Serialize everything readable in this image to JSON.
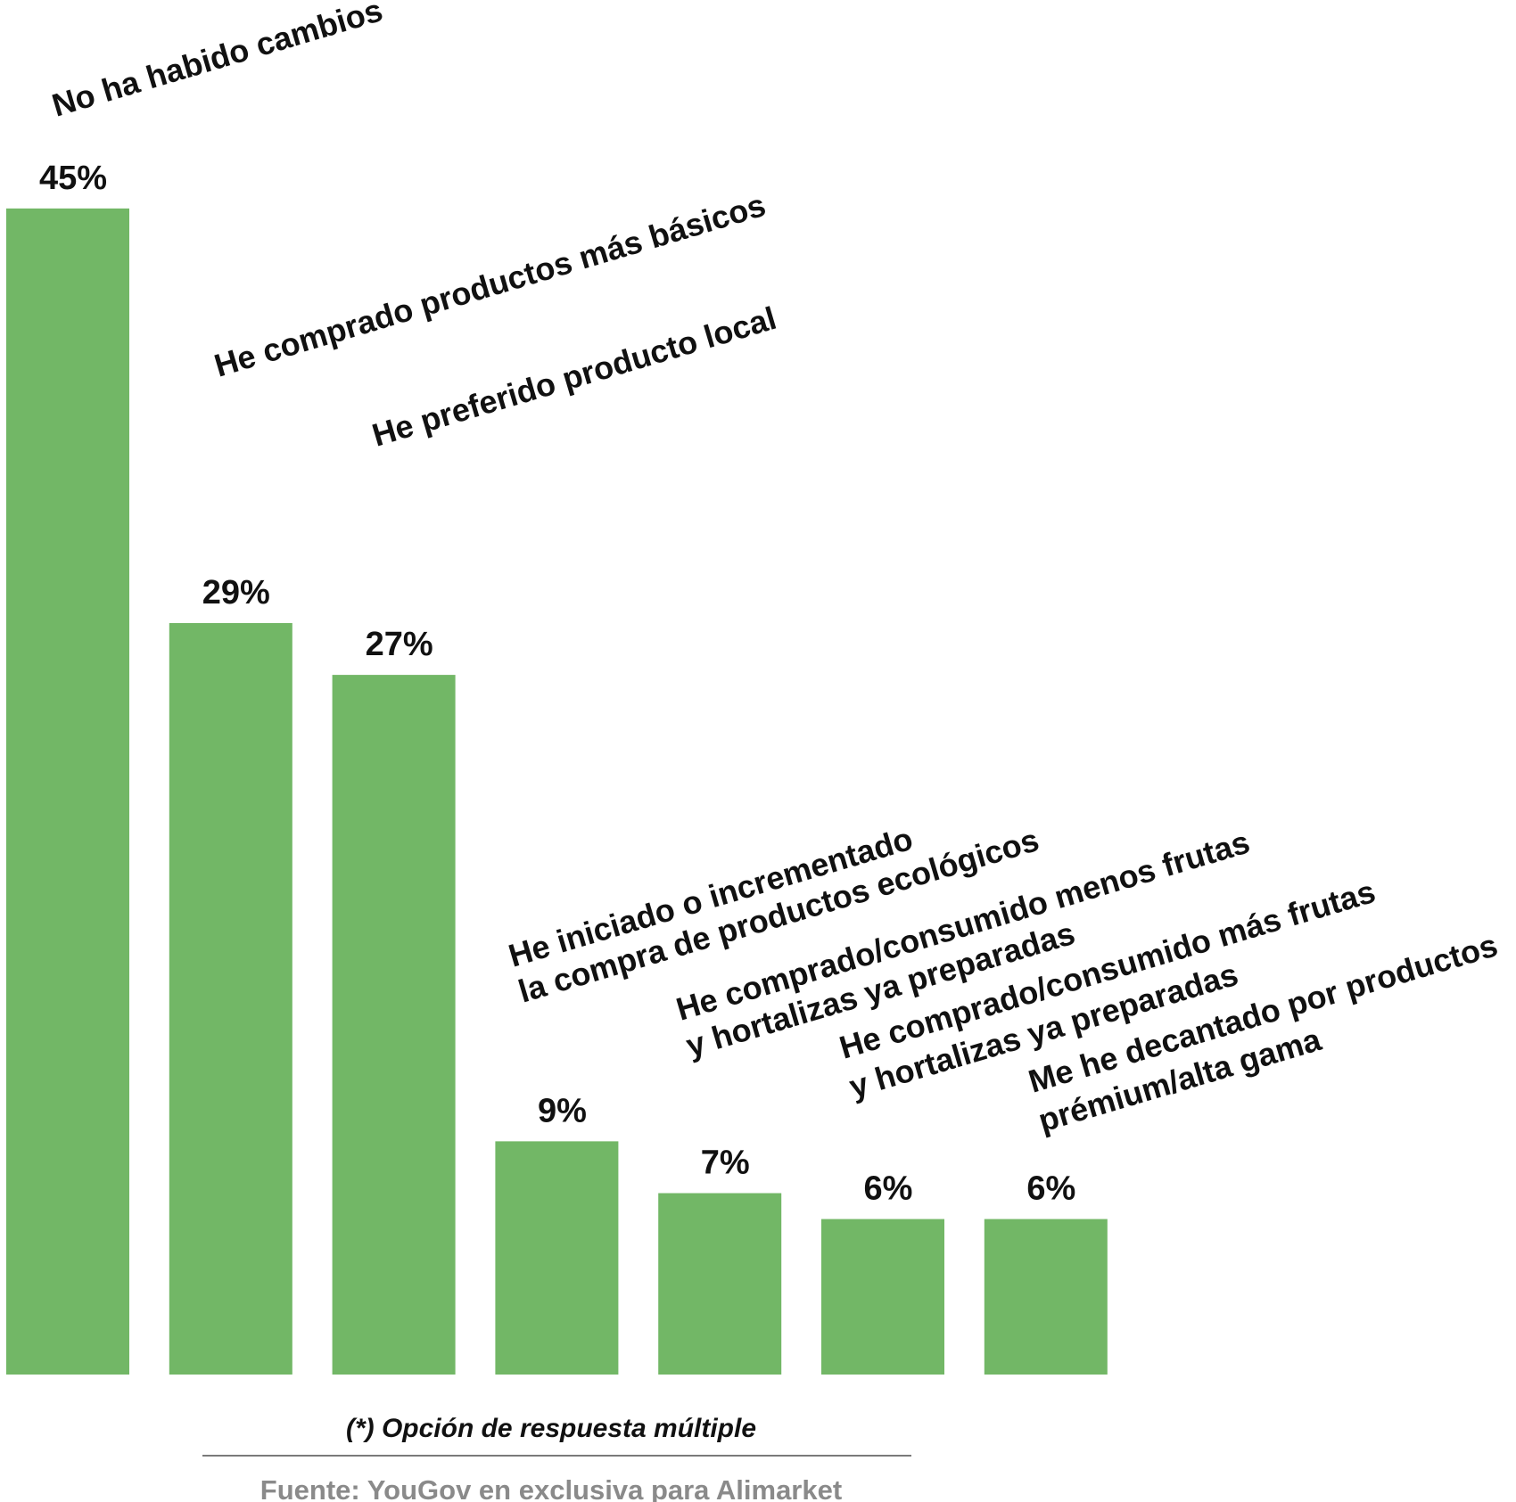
{
  "chart_data": {
    "type": "bar",
    "categories": [
      [
        "No ha habido cambios"
      ],
      [
        "He comprado productos más básicos"
      ],
      [
        "He preferido producto local"
      ],
      [
        "He iniciado o incrementado",
        "la compra de productos ecológicos"
      ],
      [
        "He comprado/consumido menos frutas",
        "y hortalizas ya preparadas"
      ],
      [
        "He comprado/consumido más frutas",
        "y hortalizas ya preparadas"
      ],
      [
        "Me he decantado por productos",
        "prémium/alta gama"
      ]
    ],
    "values": [
      45,
      29,
      27,
      9,
      7,
      6,
      6
    ],
    "value_labels": [
      "45%",
      "29%",
      "27%",
      "9%",
      "7%",
      "6%",
      "6%"
    ],
    "unit": "%",
    "ylim": [
      0,
      45
    ],
    "grid": false,
    "bar_color": "#72b766"
  },
  "footnote": "(*) Opción de respuesta múltiple",
  "source": "Fuente: YouGov en exclusiva para Alimarket"
}
